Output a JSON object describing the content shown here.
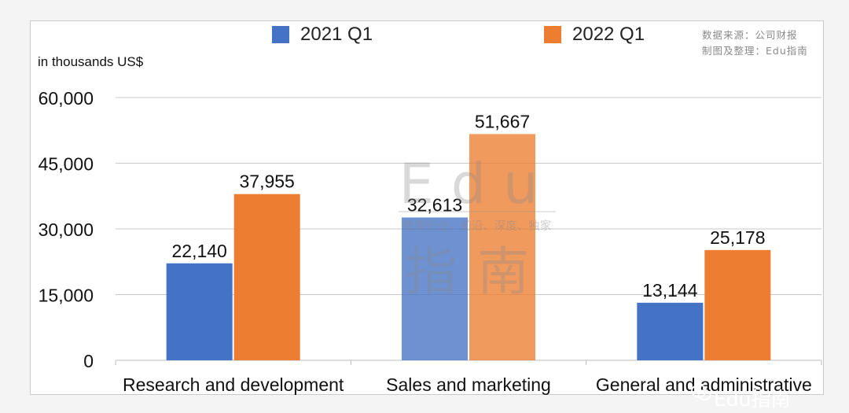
{
  "chart_data": {
    "type": "bar",
    "categories": [
      "Research and development",
      "Sales and marketing",
      "General and administrative"
    ],
    "series": [
      {
        "name": "2021 Q1",
        "color": "#4472c4",
        "values": [
          22140,
          32613,
          13144
        ]
      },
      {
        "name": "2022 Q1",
        "color": "#ed7d31",
        "values": [
          37955,
          51667,
          25178
        ]
      }
    ],
    "ylabel": "in thousands US$",
    "ylim": [
      0,
      60000
    ],
    "yticks": [
      0,
      15000,
      30000,
      45000,
      60000
    ],
    "ytick_labels": [
      "0",
      "15,000",
      "30,000",
      "45,000",
      "60,000"
    ],
    "data_labels": [
      [
        "22,140",
        "32,613",
        "13,144"
      ],
      [
        "37,955",
        "51,667",
        "25,178"
      ]
    ],
    "grid": "horizontal",
    "legend_position": "top"
  },
  "source_note": {
    "line1": "数据来源：公司财报",
    "line2": "制图及整理：Edu指南"
  },
  "watermark": {
    "title": "Edu",
    "subtitle": "教育行业，前沿、深度、独家",
    "chinese": "指南"
  },
  "brand": {
    "name": "Edu指南"
  }
}
